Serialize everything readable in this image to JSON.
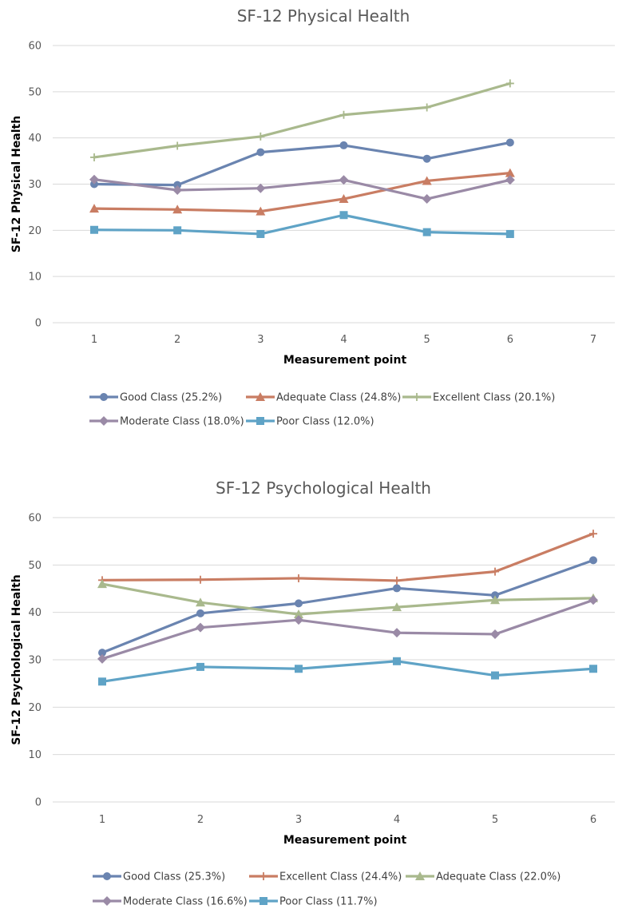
{
  "chart_data": [
    {
      "type": "line",
      "title": "SF-12 Physical Health",
      "xlabel": "Measurement point",
      "ylabel": "SF-12 Physical Health",
      "x": [
        1,
        2,
        3,
        4,
        5,
        6
      ],
      "x_ticks": [
        "1",
        "2",
        "3",
        "4",
        "5",
        "6",
        "7"
      ],
      "xlim": [
        1,
        7
      ],
      "ylim": [
        0,
        60
      ],
      "y_ticks": [
        "0",
        "10",
        "20",
        "30",
        "40",
        "50",
        "60"
      ],
      "grid": true,
      "legend_position": "bottom",
      "series": [
        {
          "name": "Good Class (25.2%)",
          "color": "#6a84b0",
          "marker": "circle",
          "values": [
            30.0,
            29.8,
            36.9,
            38.4,
            35.5,
            39.0
          ]
        },
        {
          "name": "Adequate Class (24.8%)",
          "color": "#c97d63",
          "marker": "triangle",
          "values": [
            24.7,
            24.5,
            24.1,
            26.8,
            30.7,
            32.4
          ]
        },
        {
          "name": "Excellent Class (20.1%)",
          "color": "#a9b98d",
          "marker": "plus",
          "values": [
            35.8,
            38.3,
            40.3,
            45.0,
            46.6,
            51.8
          ]
        },
        {
          "name": "Moderate Class (18.0%)",
          "color": "#9a8aa6",
          "marker": "diamond",
          "values": [
            31.0,
            28.7,
            29.1,
            30.9,
            26.8,
            30.9
          ]
        },
        {
          "name": "Poor Class (12.0%)",
          "color": "#5fa3c6",
          "marker": "square",
          "values": [
            20.1,
            20.0,
            19.2,
            23.3,
            19.6,
            19.2
          ]
        }
      ]
    },
    {
      "type": "line",
      "title": "SF-12 Psychological Health",
      "xlabel": "Measurement point",
      "ylabel": "SF-12 Psychological Health",
      "x": [
        1,
        2,
        3,
        4,
        5,
        6
      ],
      "x_ticks": [
        "1",
        "2",
        "3",
        "4",
        "5",
        "6"
      ],
      "xlim": [
        1,
        6
      ],
      "ylim": [
        0,
        60
      ],
      "y_ticks": [
        "0",
        "10",
        "20",
        "30",
        "40",
        "50",
        "60"
      ],
      "grid": true,
      "legend_position": "bottom",
      "series": [
        {
          "name": "Good Class (25.3%)",
          "color": "#6a84b0",
          "marker": "circle",
          "values": [
            31.5,
            39.8,
            41.9,
            45.1,
            43.6,
            51.0
          ]
        },
        {
          "name": "Excellent Class (24.4%)",
          "color": "#c97d63",
          "marker": "plus",
          "values": [
            46.8,
            46.9,
            47.2,
            46.7,
            48.6,
            56.6
          ]
        },
        {
          "name": "Adequate Class (22.0%)",
          "color": "#a9b98d",
          "marker": "triangle",
          "values": [
            46.0,
            42.1,
            39.6,
            41.1,
            42.6,
            43.0
          ]
        },
        {
          "name": "Moderate Class (16.6%)",
          "color": "#9a8aa6",
          "marker": "diamond",
          "values": [
            30.2,
            36.8,
            38.4,
            35.7,
            35.4,
            42.6
          ]
        },
        {
          "name": "Poor Class (11.7%)",
          "color": "#5fa3c6",
          "marker": "square",
          "values": [
            25.4,
            28.5,
            28.1,
            29.7,
            26.7,
            28.1
          ]
        }
      ]
    }
  ]
}
